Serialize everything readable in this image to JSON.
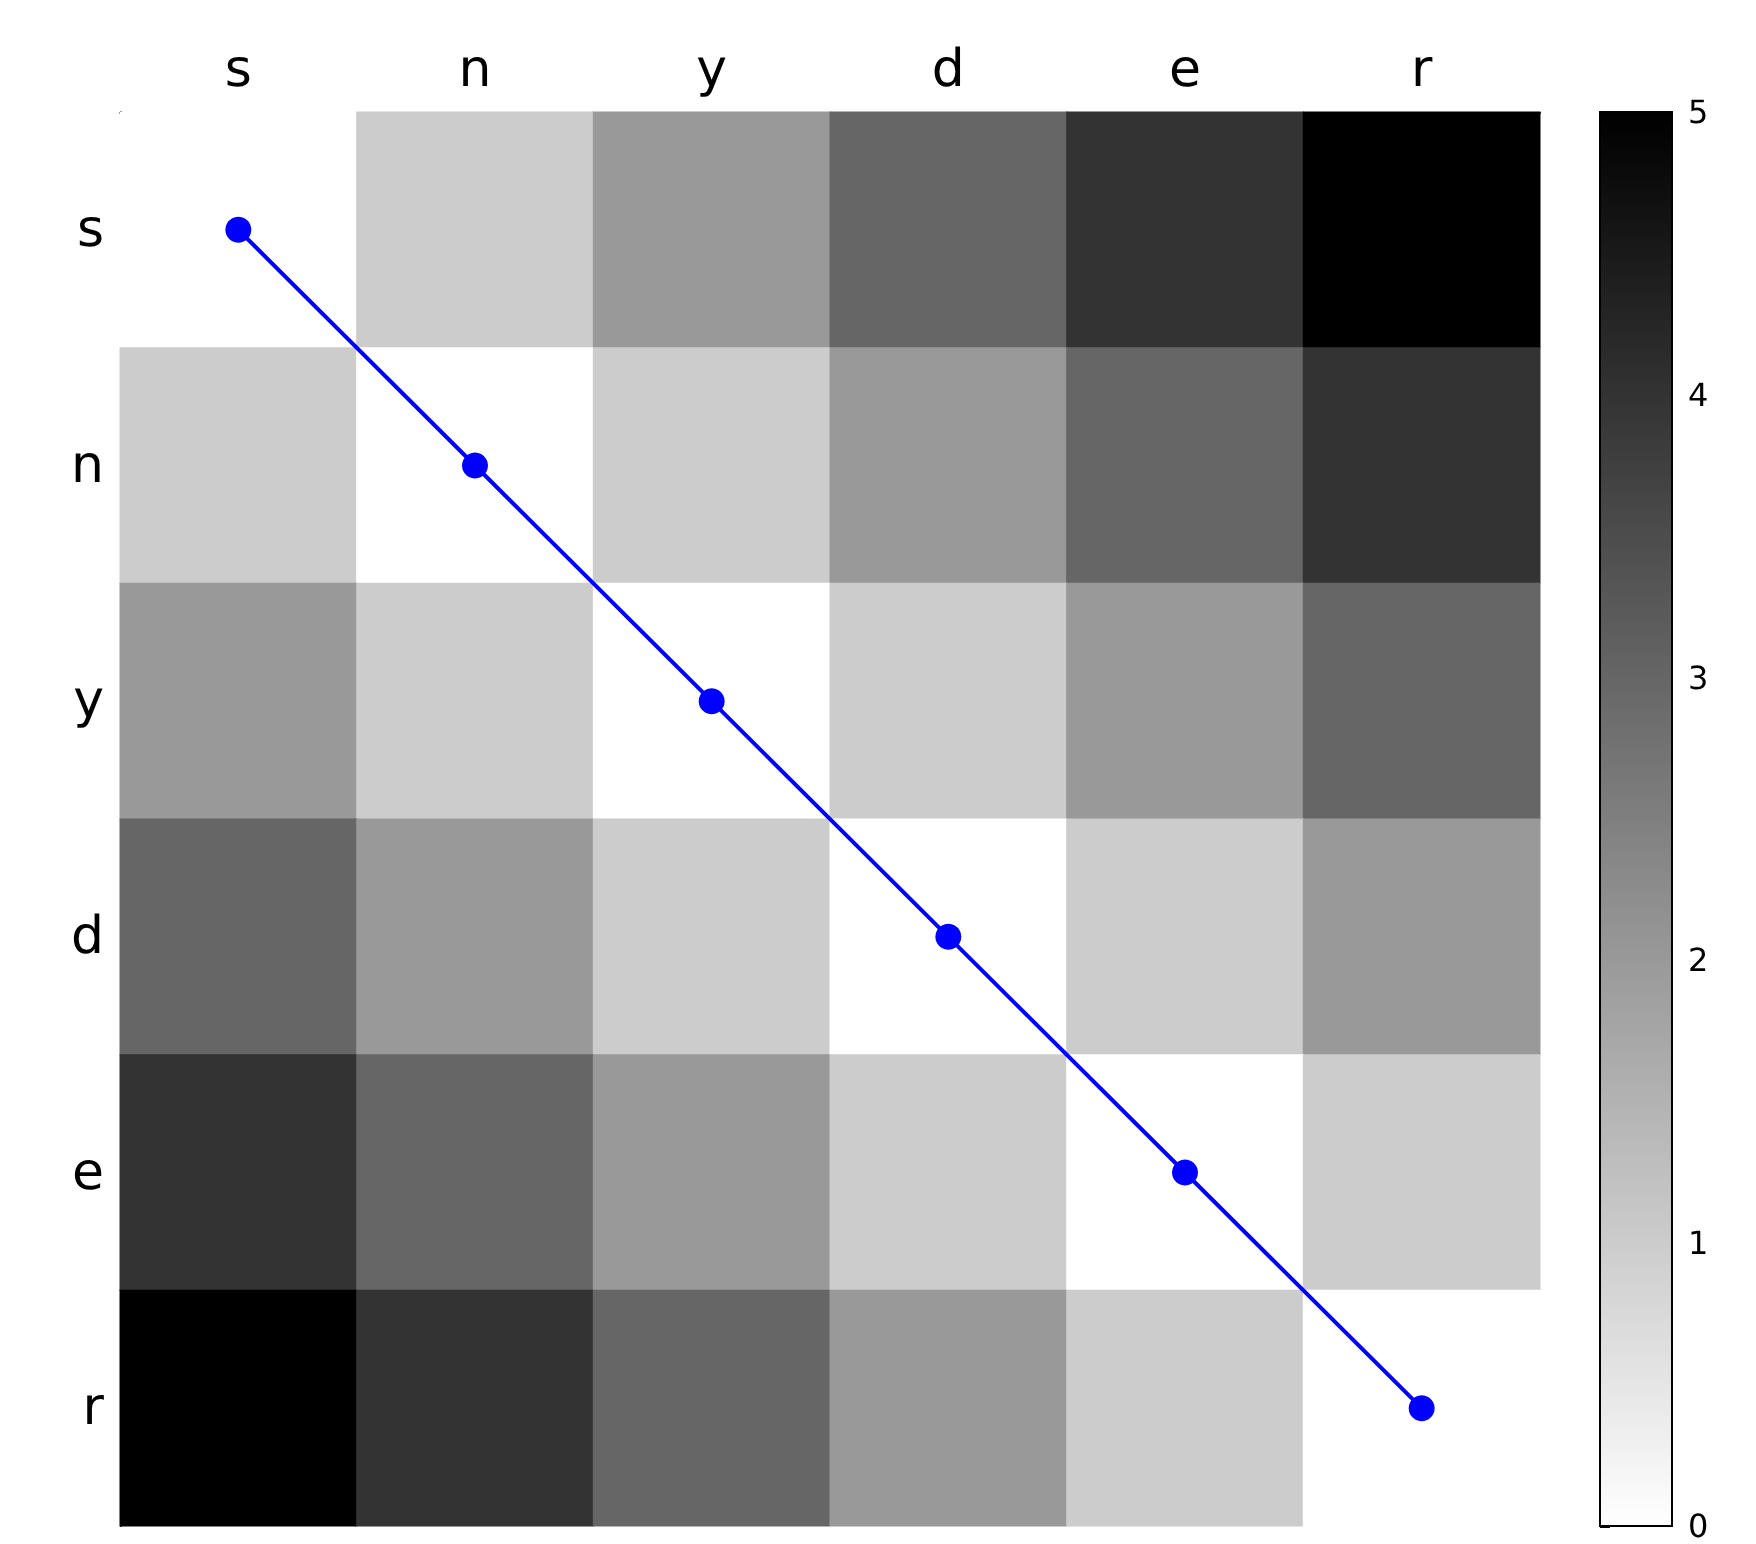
{
  "chart_data": {
    "type": "heatmap",
    "categories": [
      "s",
      "n",
      "y",
      "d",
      "e",
      "r"
    ],
    "y_categories": [
      "s",
      "n",
      "y",
      "d",
      "e",
      "r"
    ],
    "cells": [
      [
        0,
        1,
        2,
        3,
        4,
        5
      ],
      [
        1,
        0,
        1,
        2,
        3,
        4
      ],
      [
        2,
        1,
        0,
        1,
        2,
        3
      ],
      [
        3,
        2,
        1,
        0,
        1,
        2
      ],
      [
        4,
        3,
        2,
        1,
        0,
        1
      ],
      [
        5,
        4,
        3,
        2,
        1,
        0
      ]
    ],
    "colors": [
      "#ffffff",
      "#000000"
    ],
    "clim": [
      0,
      5
    ],
    "cticks": [
      0,
      1,
      2,
      3,
      4,
      5
    ],
    "grid": false,
    "series": [
      {
        "type": "line",
        "color": "#0000ff",
        "marker": "circle",
        "x": [
          "s",
          "n",
          "y",
          "d",
          "e",
          "r"
        ],
        "values": [
          0,
          1,
          2,
          3,
          4,
          5
        ]
      }
    ]
  }
}
